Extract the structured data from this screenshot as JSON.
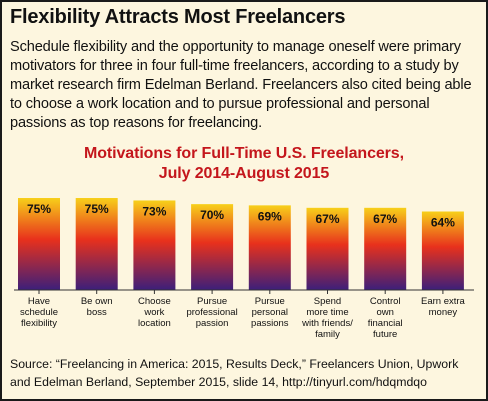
{
  "headline": "Flexibility Attracts Most Freelancers",
  "intro": "Schedule flexibility and the opportunity to manage oneself were primary motivators for three in four full-time freelancers, according to a study by market research firm Edelman Berland. Freelancers also cited being able to choose a work location and to pursue professional and personal passions as top reasons for freelancing.",
  "source": "Source: “Freelancing in America: 2015, Results Deck,” Freelancers Union, Upwork and Edelman Berland, September 2015, slide 14, http://tinyurl.com/hdqmdqo",
  "colors": {
    "title": "#c4161c",
    "bar_top": "#f7d01a",
    "bar_mid": "#e8311c",
    "bar_bottom": "#3c1f7a"
  },
  "chart_data": {
    "type": "bar",
    "title": "Motivations for Full-Time U.S. Freelancers,",
    "subtitle": "July 2014-August 2015",
    "categories": [
      [
        "Have",
        "schedule",
        "flexibility"
      ],
      [
        "Be own",
        "boss"
      ],
      [
        "Choose",
        "work",
        "location"
      ],
      [
        "Pursue",
        "professional",
        "passion"
      ],
      [
        "Pursue",
        "personal",
        "passions"
      ],
      [
        "Spend",
        "more time",
        "with friends/",
        "family"
      ],
      [
        "Control",
        "own",
        "financial",
        "future"
      ],
      [
        "Earn extra",
        "money"
      ]
    ],
    "values": [
      75,
      75,
      73,
      70,
      69,
      67,
      67,
      64
    ],
    "value_labels": [
      "75%",
      "75%",
      "73%",
      "70%",
      "69%",
      "67%",
      "67%",
      "64%"
    ],
    "unit": "%",
    "ylim": [
      0,
      75
    ],
    "grid": false,
    "legend": "none"
  }
}
